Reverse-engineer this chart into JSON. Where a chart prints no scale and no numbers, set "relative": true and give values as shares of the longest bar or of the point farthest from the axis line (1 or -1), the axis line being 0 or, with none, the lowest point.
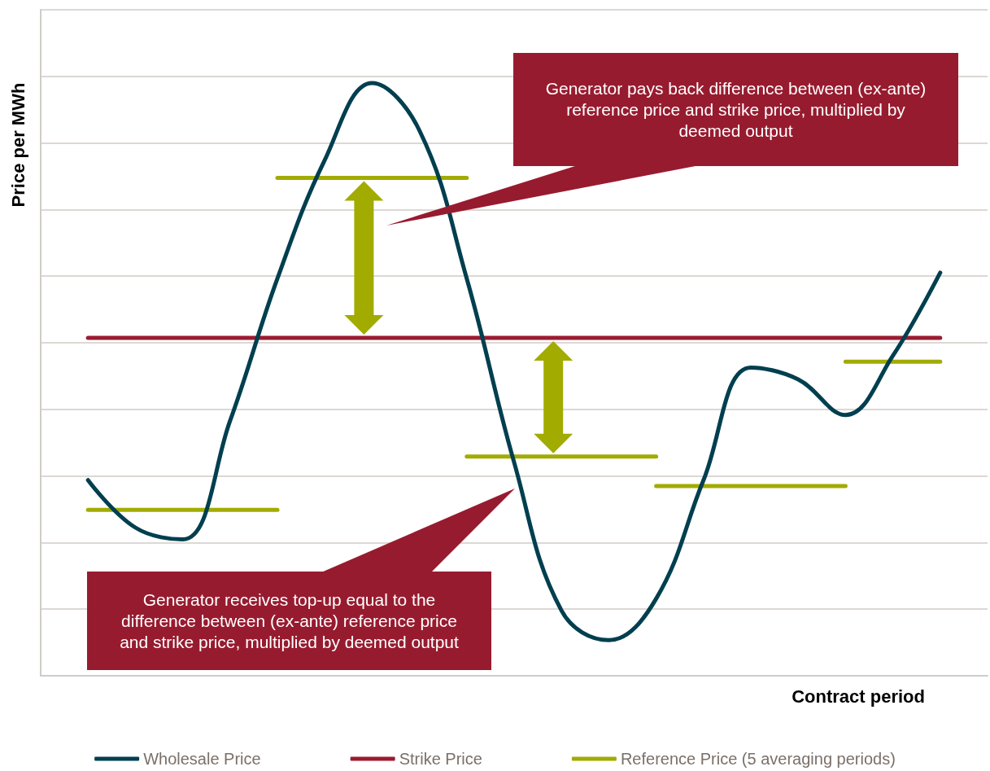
{
  "chart_data": {
    "type": "line",
    "relative": true,
    "xlabel": "Contract period",
    "ylabel": "Price per MWh",
    "categories": [
      null,
      null,
      null,
      null,
      null,
      null,
      null,
      null,
      null,
      null,
      null,
      null,
      null,
      null,
      null,
      null,
      null,
      null,
      null,
      null,
      null
    ],
    "series": [
      {
        "name": "Wholesale Price",
        "color": "#003f4f",
        "values": [
          null,
          0.33,
          0.25,
          0.23,
          0.43,
          0.67,
          0.87,
          1.0,
          0.92,
          0.67,
          0.36,
          0.11,
          0.06,
          0.13,
          0.33,
          0.52,
          0.5,
          0.44,
          0.54,
          0.68,
          null
        ]
      },
      {
        "name": "Strike Price",
        "color": "#9b1b30",
        "values": [
          null,
          0.57,
          0.57,
          0.57,
          0.57,
          0.57,
          0.57,
          0.57,
          0.57,
          0.57,
          0.57,
          0.57,
          0.57,
          0.57,
          0.57,
          0.57,
          0.57,
          0.57,
          0.57,
          0.57,
          null
        ]
      },
      {
        "name": "Reference Price (5 averaging periods)",
        "color": "#a2ab00",
        "values": [
          null,
          0.28,
          0.28,
          0.28,
          0.28,
          0.28,
          null,
          null,
          null,
          null,
          null,
          null,
          null,
          null,
          null,
          null,
          null,
          null,
          null,
          null,
          null
        ]
      },
      {
        "color": "#a2ab00",
        "values": [
          null,
          null,
          null,
          null,
          null,
          0.84,
          0.84,
          0.84,
          0.84,
          0.84,
          null,
          null,
          null,
          null,
          null,
          null,
          null,
          null,
          null,
          null,
          null
        ]
      },
      {
        "color": "#a2ab00",
        "values": [
          null,
          null,
          null,
          null,
          null,
          null,
          null,
          null,
          null,
          0.37,
          0.37,
          0.37,
          0.37,
          0.37,
          null,
          null,
          null,
          null,
          null,
          null,
          null
        ]
      },
      {
        "color": "#a2ab00",
        "values": [
          null,
          null,
          null,
          null,
          null,
          null,
          null,
          null,
          null,
          null,
          null,
          null,
          null,
          0.32,
          0.32,
          0.32,
          0.32,
          0.32,
          null,
          null,
          null
        ]
      },
      {
        "color": "#a2ab00",
        "values": [
          null,
          null,
          null,
          null,
          null,
          null,
          null,
          null,
          null,
          null,
          null,
          null,
          null,
          null,
          null,
          null,
          null,
          0.53,
          0.53,
          0.53,
          null
        ]
      }
    ],
    "annotations": [
      "Generator pays back difference between (ex-ante) reference price and strike price, multiplied by deemed output",
      "Generator receives top-up equal to the difference between (ex-ante) reference price and strike price, multiplied by deemed output"
    ],
    "grid": "y",
    "legend": "bottom",
    "marker": "none",
    "line_style": "solid"
  }
}
